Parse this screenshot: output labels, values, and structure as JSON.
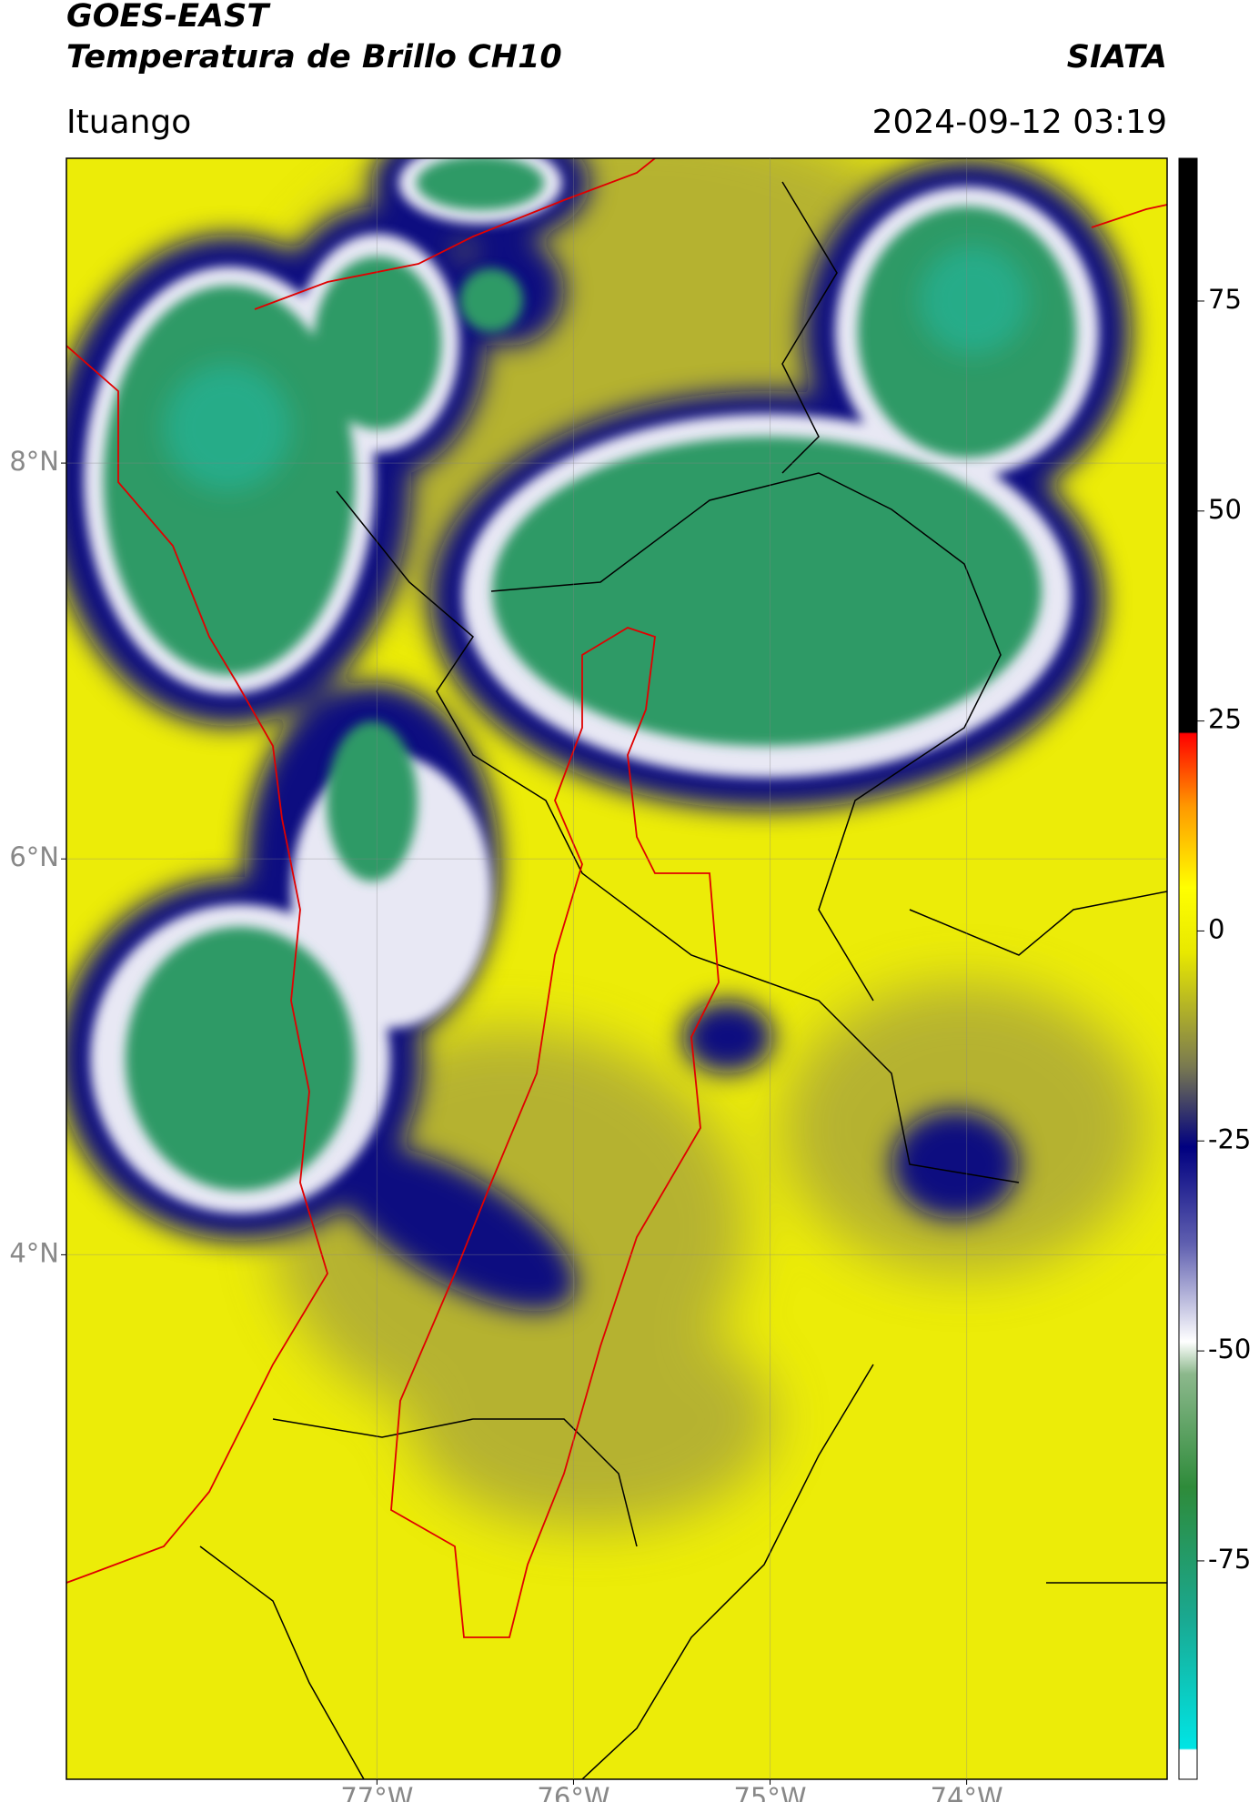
{
  "map": {
    "title": "GOES-EAST",
    "subtitle": "Temperatura de Brillo CH10",
    "source": "SIATA",
    "location": "Ituango",
    "datetime": "2024-09-12 03:19",
    "xlim": [
      -78.58,
      -72.98
    ],
    "ylim": [
      1.35,
      9.54
    ],
    "xticks": [
      {
        "value": -77,
        "label": "77°W"
      },
      {
        "value": -76,
        "label": "76°W"
      },
      {
        "value": -75,
        "label": "75°W"
      },
      {
        "value": -74,
        "label": "74°W"
      }
    ],
    "yticks": [
      {
        "value": 8,
        "label": "8°N"
      },
      {
        "value": 6,
        "label": "6°N"
      },
      {
        "value": 4,
        "label": "4°N"
      }
    ],
    "grid": true,
    "colorbar": {
      "clim": [
        -101,
        92
      ],
      "ticks": [
        75,
        50,
        25,
        0,
        -25,
        -50,
        -75
      ]
    }
  }
}
